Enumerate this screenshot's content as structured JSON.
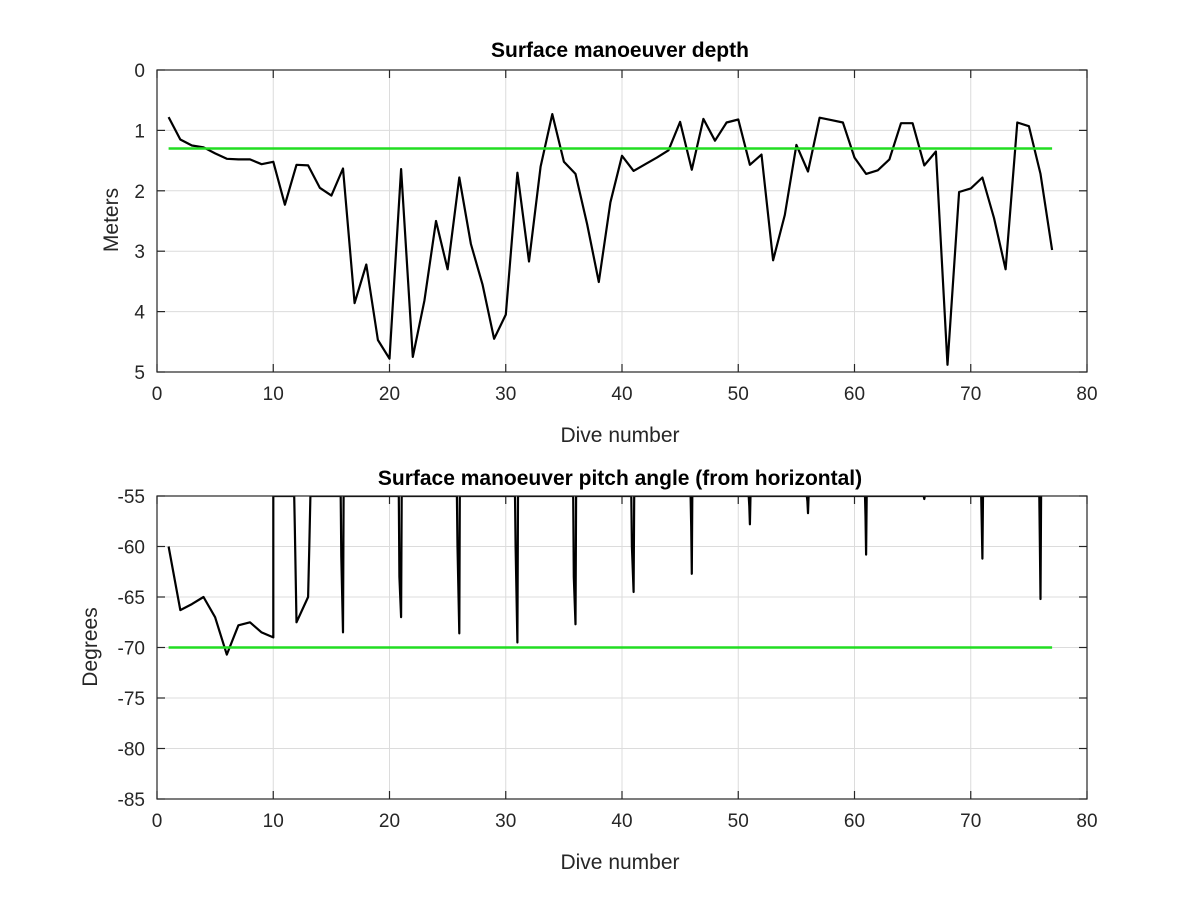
{
  "colors": {
    "data_line": "#000000",
    "threshold_line": "#22dd22",
    "grid": "#dcdcdc"
  },
  "chart_data": [
    {
      "type": "line",
      "title": "Surface manoeuver depth",
      "xlabel": "Dive number",
      "ylabel": "Meters",
      "xlim": [
        0,
        80
      ],
      "ylim": [
        0,
        5
      ],
      "y_reversed": true,
      "grid": true,
      "xticks": [
        "0",
        "10",
        "20",
        "30",
        "40",
        "50",
        "60",
        "70",
        "80"
      ],
      "yticks": [
        "0",
        "1",
        "2",
        "3",
        "4",
        "5"
      ],
      "series": [
        {
          "color": "black",
          "x": [
            1,
            2,
            3,
            4,
            5,
            6,
            7,
            8,
            9,
            10,
            11,
            12,
            13,
            14,
            15,
            16,
            17,
            18,
            19,
            20,
            21,
            22,
            23,
            24,
            25,
            26,
            27,
            28,
            29,
            30,
            31,
            32,
            33,
            34,
            35,
            36,
            37,
            38,
            39,
            40,
            41,
            42,
            43,
            44,
            45,
            46,
            47,
            48,
            49,
            50,
            51,
            52,
            53,
            54,
            55,
            56,
            57,
            58,
            59,
            60,
            61,
            62,
            63,
            64,
            65,
            66,
            67,
            68,
            69,
            70,
            71,
            72,
            73,
            74,
            75,
            76,
            77
          ],
          "y": [
            0.78,
            1.15,
            1.25,
            1.28,
            1.38,
            1.47,
            1.48,
            1.48,
            1.56,
            1.52,
            2.23,
            1.57,
            1.58,
            1.95,
            2.08,
            1.63,
            3.86,
            3.22,
            4.47,
            4.78,
            1.64,
            4.75,
            3.82,
            2.5,
            3.3,
            1.78,
            2.88,
            3.55,
            4.45,
            4.05,
            1.7,
            3.17,
            1.6,
            0.73,
            1.52,
            1.72,
            2.55,
            3.51,
            2.19,
            1.42,
            1.67,
            1.56,
            1.45,
            1.33,
            0.86,
            1.65,
            0.81,
            1.17,
            0.87,
            0.82,
            1.57,
            1.4,
            3.15,
            2.4,
            1.24,
            1.68,
            0.79,
            0.83,
            0.87,
            1.45,
            1.72,
            1.66,
            1.48,
            0.88,
            0.88,
            1.58,
            1.35,
            4.88,
            2.02,
            1.96,
            1.78,
            2.45,
            3.3,
            0.87,
            0.93,
            1.72,
            2.98
          ]
        },
        {
          "color": "green",
          "x": [
            1,
            77
          ],
          "y": [
            1.3,
            1.3
          ]
        }
      ]
    },
    {
      "type": "line",
      "title": "Surface manoeuver pitch angle (from horizontal)",
      "xlabel": "Dive number",
      "ylabel": "Degrees",
      "xlim": [
        0,
        80
      ],
      "ylim": [
        -85,
        -55
      ],
      "grid": true,
      "xticks": [
        "0",
        "10",
        "20",
        "30",
        "40",
        "50",
        "60",
        "70",
        "80"
      ],
      "yticks": [
        "-55",
        "-60",
        "-65",
        "-70",
        "-75",
        "-80",
        "-85"
      ],
      "series": [
        {
          "color": "black",
          "x": [
            1,
            2,
            3,
            4,
            5,
            6,
            7,
            8,
            9,
            10,
            10,
            10,
            11.8,
            11.85,
            12,
            13,
            13.1,
            13.2,
            15.8,
            15.85,
            16,
            16.05,
            20.8,
            20.85,
            21,
            21.05,
            25.8,
            25.85,
            26,
            26.05,
            30.8,
            30.85,
            31,
            31.05,
            35.8,
            35.85,
            36,
            36.05,
            40.8,
            40.85,
            41,
            41.05,
            45.9,
            45.95,
            46,
            46.05,
            50.9,
            50.95,
            51,
            51.05,
            55.9,
            55.95,
            56,
            56.05,
            60.9,
            60.95,
            61,
            61.05,
            65.9,
            65.95,
            66,
            66.05,
            70.9,
            70.95,
            71,
            71.05,
            75.9,
            75.95,
            76,
            76.05
          ],
          "y": [
            -60,
            -66.3,
            -65.7,
            -65,
            -67,
            -70.7,
            -67.8,
            -67.5,
            -68.5,
            -69,
            -55,
            -55,
            -55,
            -58,
            -67.5,
            -65,
            -60,
            -55,
            -55,
            -61,
            -68.5,
            -55,
            -55,
            -63,
            -67,
            -55,
            -55,
            -60,
            -68.6,
            -55,
            -55,
            -60,
            -69.5,
            -55,
            -55,
            -63,
            -67.7,
            -55,
            -55,
            -60,
            -64.5,
            -55,
            -55,
            -58,
            -62.7,
            -55,
            -55,
            -56,
            -57.8,
            -55,
            -55,
            -55.5,
            -56.7,
            -55,
            -55,
            -57,
            -60.8,
            -55,
            -55,
            -55,
            -55.3,
            -55,
            -55,
            -58,
            -61.2,
            -55,
            -55,
            -60,
            -65.2,
            -55
          ]
        },
        {
          "color": "green",
          "x": [
            1,
            77
          ],
          "y": [
            -70,
            -70
          ]
        }
      ]
    }
  ]
}
